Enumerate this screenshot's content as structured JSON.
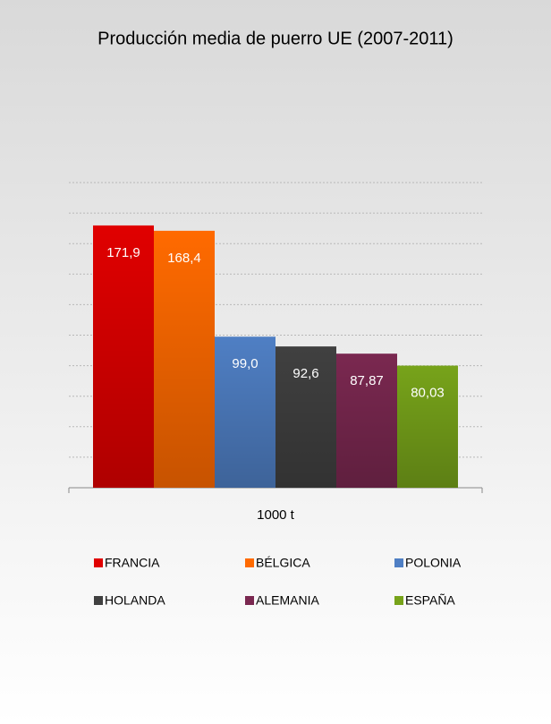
{
  "chart_data": {
    "type": "bar",
    "title": "Producción media de puerro UE (2007-2011)",
    "categories": [
      "1000 t"
    ],
    "series": [
      {
        "name": "FRANCIA",
        "color": "#e00000",
        "values": [
          171.9
        ],
        "value_labels": [
          "171,9"
        ]
      },
      {
        "name": "BÉLGICA",
        "color": "#ff6a00",
        "values": [
          168.4
        ],
        "value_labels": [
          "168,4"
        ]
      },
      {
        "name": "POLONIA",
        "color": "#4f7fc4",
        "values": [
          99.0
        ],
        "value_labels": [
          "99,0"
        ]
      },
      {
        "name": "HOLANDA",
        "color": "#404040",
        "values": [
          92.6
        ],
        "value_labels": [
          "92,6"
        ]
      },
      {
        "name": "ALEMANIA",
        "color": "#7a2850",
        "values": [
          87.87
        ],
        "value_labels": [
          "87,87"
        ]
      },
      {
        "name": "ESPAÑA",
        "color": "#77a31a",
        "values": [
          80.03
        ],
        "value_labels": [
          "80,03"
        ]
      }
    ],
    "ylim": [
      0,
      200
    ],
    "yticks": [
      0,
      20,
      40,
      60,
      80,
      100,
      120,
      140,
      160,
      180,
      200
    ],
    "grid": true
  }
}
